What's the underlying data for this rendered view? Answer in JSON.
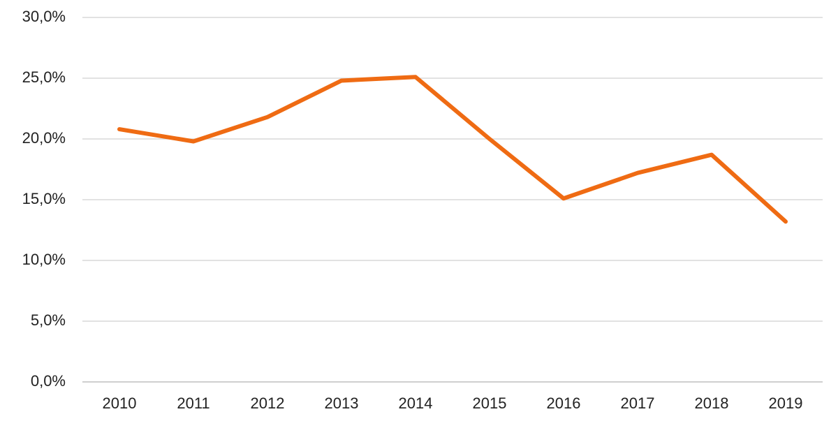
{
  "chart_data": {
    "type": "line",
    "categories": [
      "2010",
      "2011",
      "2012",
      "2013",
      "2014",
      "2015",
      "2016",
      "2017",
      "2018",
      "2019"
    ],
    "values": [
      20.8,
      19.8,
      21.8,
      24.8,
      25.1,
      20.0,
      15.1,
      17.2,
      18.7,
      13.2
    ],
    "color": "#ef6b13",
    "ylim": [
      0,
      30
    ],
    "yticks": [
      {
        "value": 0,
        "label": "0,0%"
      },
      {
        "value": 5,
        "label": "5,0%"
      },
      {
        "value": 10,
        "label": "10,0%"
      },
      {
        "value": 15,
        "label": "15,0%"
      },
      {
        "value": 20,
        "label": "20,0%"
      },
      {
        "value": 25,
        "label": "25,0%"
      },
      {
        "value": 30,
        "label": "30,0%"
      }
    ],
    "grid": true
  }
}
